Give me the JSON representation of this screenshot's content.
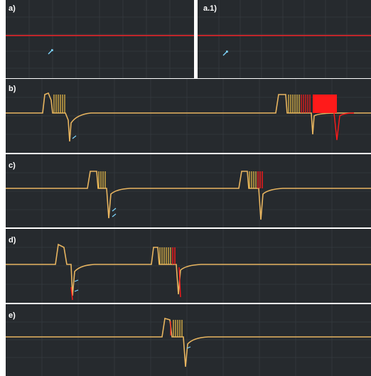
{
  "panels": {
    "a": {
      "label": "a)"
    },
    "a1": {
      "label": "a.1)"
    },
    "b": {
      "label": "b)"
    },
    "c": {
      "label": "c)"
    },
    "d": {
      "label": "d)"
    },
    "e": {
      "label": "e)"
    }
  },
  "colors": {
    "background": "#262a2e",
    "grid": "#3a4046",
    "baseline": "#e8b560",
    "stimulus": "#f2c24a",
    "high_frequency": "#ff1a1a",
    "marker": "#7fd8ff",
    "reference_line": "#c0262b"
  },
  "icons": [
    "arrow-marker-icon"
  ]
}
